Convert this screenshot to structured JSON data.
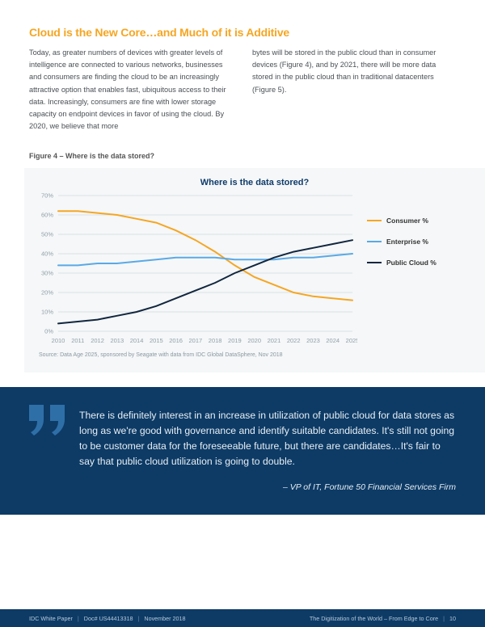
{
  "header": {
    "title": "Cloud is the New Core…and Much of it is Additive",
    "col1": "Today, as greater numbers of devices with greater levels of intelligence are connected to various networks, businesses and consumers are finding the cloud to be an increasingly attractive option that enables fast, ubiquitous access to their data. Increasingly, consumers are fine with lower storage capacity on endpoint devices in favor of using the cloud. By 2020, we believe that more",
    "col2": "bytes will be stored in the public cloud than in consumer devices (Figure 4), and by 2021, there will be more data stored in the public cloud than in traditional datacenters (Figure 5)."
  },
  "figure": {
    "label": "Figure 4 – Where is the data stored?",
    "title": "Where is the data stored?",
    "source": "Source: Data Age 2025, sponsored by Seagate with data from IDC Global DataSphere, Nov 2018",
    "type": "line",
    "x_categories": [
      "2010",
      "2011",
      "2012",
      "2013",
      "2014",
      "2015",
      "2016",
      "2017",
      "2018",
      "2019",
      "2020",
      "2021",
      "2022",
      "2023",
      "2024",
      "2025"
    ],
    "y_ticks": [
      0,
      10,
      20,
      30,
      40,
      50,
      60,
      70
    ],
    "ylim": [
      0,
      70
    ],
    "series": [
      {
        "name": "Consumer %",
        "color": "#f5a623",
        "values": [
          62,
          62,
          61,
          60,
          58,
          56,
          52,
          47,
          41,
          34,
          28,
          24,
          20,
          18,
          17,
          16
        ]
      },
      {
        "name": "Enterprise %",
        "color": "#5aa9e6",
        "values": [
          34,
          34,
          35,
          35,
          36,
          37,
          38,
          38,
          38,
          37,
          37,
          37,
          38,
          38,
          39,
          40
        ]
      },
      {
        "name": "Public Cloud %",
        "color": "#12263f",
        "values": [
          4,
          5,
          6,
          8,
          10,
          13,
          17,
          21,
          25,
          30,
          34,
          38,
          41,
          43,
          45,
          47
        ]
      }
    ],
    "background_color": "#f5f7f8",
    "grid_color": "#c0ccd4",
    "line_width": 2,
    "axis_label_color": "#92a0aa",
    "axis_fontsize": 7.5
  },
  "quote": {
    "text": "There is definitely interest in an increase in utilization of public cloud for data stores as long as we're good with governance and identify suitable candidates. It's still not going to be customer data for the foreseeable future, but there are candidates…It's fair to say that public cloud utilization is going to double.",
    "attribution": "– VP of IT, Fortune 50 Financial Services Firm",
    "bg_color": "#0d3b66",
    "quote_mark_color": "#2f6fa8"
  },
  "footer": {
    "left_parts": [
      "IDC White Paper",
      "Doc# US44413318",
      "November 2018"
    ],
    "right_parts": [
      "The Digitization of the World – From Edge to Core",
      "10"
    ]
  }
}
